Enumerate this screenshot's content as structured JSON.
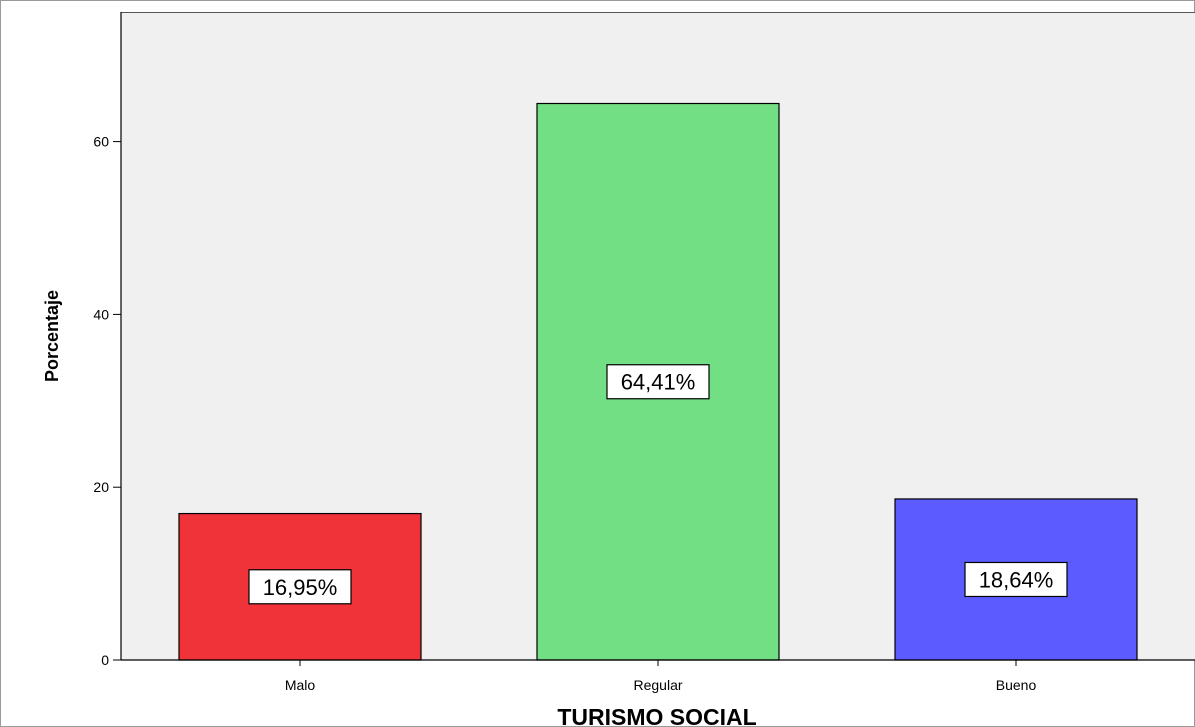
{
  "chart_data": {
    "type": "bar",
    "categories": [
      "Malo",
      "Regular",
      "Bueno"
    ],
    "values": [
      16.95,
      64.41,
      18.64
    ],
    "data_labels": [
      "16,95%",
      "64,41%",
      "18,64%"
    ],
    "colors": [
      "#ef3338",
      "#73df84",
      "#5b5bff"
    ],
    "xlabel": "TURISMO SOCIAL",
    "ylabel": "Porcentaje",
    "ylim": [
      0,
      75
    ],
    "yticks": [
      0,
      20,
      40,
      60
    ],
    "grid": false,
    "plot_background": "#f0f0f0"
  }
}
